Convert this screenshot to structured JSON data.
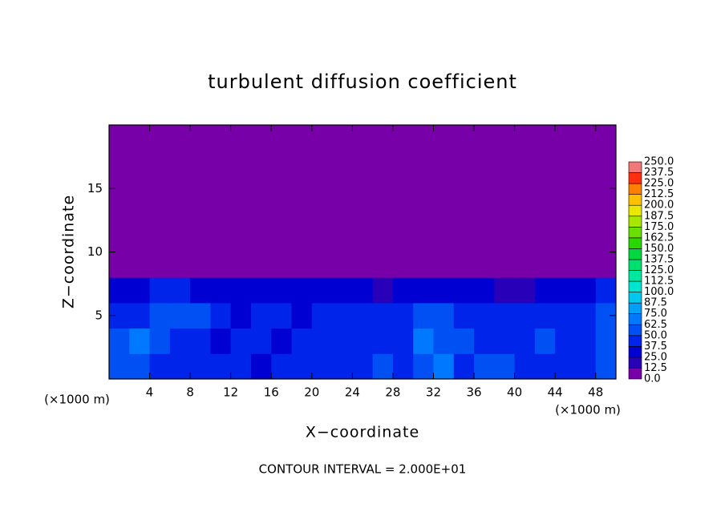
{
  "chart_data": {
    "type": "heatmap",
    "title": "turbulent diffusion coefficient",
    "xlabel": "X−coordinate",
    "ylabel": "Z−coordinate",
    "xunit": "(×1000 m)",
    "yunit": "(×1000 m)",
    "annotation": "CONTOUR INTERVAL = 2.000E+01",
    "xlim": [
      0,
      50
    ],
    "ylim": [
      0,
      20
    ],
    "xticks": [
      4,
      8,
      12,
      16,
      20,
      24,
      28,
      32,
      36,
      40,
      44,
      48
    ],
    "yticks": [
      5,
      10,
      15
    ],
    "xbins": [
      0,
      2,
      4,
      6,
      8,
      10,
      12,
      14,
      16,
      18,
      20,
      22,
      24,
      26,
      28,
      30,
      32,
      34,
      36,
      38,
      40,
      42,
      44,
      46,
      48,
      50
    ],
    "ybins": [
      0,
      2,
      4,
      6,
      8,
      20
    ],
    "values": [
      [
        60,
        62,
        45,
        40,
        45,
        40,
        38,
        35,
        40,
        38,
        40,
        42,
        45,
        50,
        42,
        55,
        70,
        45,
        55,
        50,
        42,
        45,
        40,
        45,
        50
      ],
      [
        50,
        65,
        55,
        45,
        38,
        35,
        40,
        45,
        35,
        38,
        40,
        45,
        48,
        45,
        40,
        65,
        55,
        50,
        45,
        40,
        45,
        50,
        42,
        48,
        55
      ],
      [
        40,
        45,
        55,
        60,
        50,
        45,
        35,
        40,
        38,
        35,
        40,
        42,
        45,
        38,
        45,
        50,
        55,
        45,
        40,
        38,
        42,
        45,
        40,
        45,
        50
      ],
      [
        30,
        35,
        40,
        38,
        35,
        30,
        32,
        30,
        28,
        30,
        30,
        28,
        25,
        20,
        25,
        30,
        32,
        28,
        25,
        20,
        18,
        30,
        32,
        35,
        38
      ],
      [
        0,
        0,
        0,
        0,
        0,
        0,
        0,
        0,
        0,
        0,
        0,
        0,
        0,
        0,
        0,
        0,
        0,
        0,
        0,
        0,
        0,
        0,
        0,
        0,
        0
      ]
    ],
    "colorbar": {
      "levels": [
        {
          "value": 0,
          "label": "0.0"
        },
        {
          "value": 12.5,
          "label": "12.5"
        },
        {
          "value": 25,
          "label": "25.0"
        },
        {
          "value": 37.5,
          "label": "37.5"
        },
        {
          "value": 50,
          "label": "50.0"
        },
        {
          "value": 62.5,
          "label": "62.5"
        },
        {
          "value": 75,
          "label": "75.0"
        },
        {
          "value": 87.5,
          "label": "87.5"
        },
        {
          "value": 100,
          "label": "100.0"
        },
        {
          "value": 112.5,
          "label": "112.5"
        },
        {
          "value": 125,
          "label": "125.0"
        },
        {
          "value": 137.5,
          "label": "137.5"
        },
        {
          "value": 150,
          "label": "150.0"
        },
        {
          "value": 162.5,
          "label": "162.5"
        },
        {
          "value": 175,
          "label": "175.0"
        },
        {
          "value": 187.5,
          "label": "187.5"
        },
        {
          "value": 200,
          "label": "200.0"
        },
        {
          "value": 212.5,
          "label": "212.5"
        },
        {
          "value": 225,
          "label": "225.0"
        },
        {
          "value": 237.5,
          "label": "237.5"
        },
        {
          "value": 250,
          "label": "250.0"
        }
      ],
      "colors": [
        "#7800a8",
        "#2800b8",
        "#0000d2",
        "#0024ea",
        "#0050f4",
        "#0078ff",
        "#00a0f8",
        "#00c8ee",
        "#00e4d0",
        "#00e8a0",
        "#00e070",
        "#00d840",
        "#28d800",
        "#68e000",
        "#a8e800",
        "#e8e800",
        "#ffc000",
        "#ff8000",
        "#ff3010",
        "#f07878"
      ]
    }
  }
}
